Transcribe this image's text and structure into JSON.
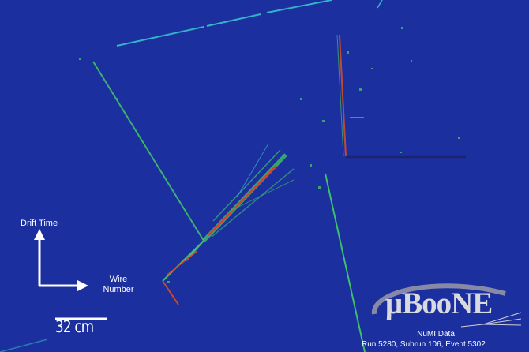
{
  "axes": {
    "vertical_label": "Drift Time",
    "horizontal_label_line1": "Wire",
    "horizontal_label_line2": "Number"
  },
  "scale_bar": {
    "label": "32 cm"
  },
  "logo": {
    "text": "μBooNE"
  },
  "event": {
    "data_title": "NuMI Data",
    "run_info": "Run 5280, Subrun 106, Event 5302"
  },
  "colors": {
    "background": "#1b2f9e",
    "track_green": "#3fbf6a",
    "track_red": "#d9402a",
    "track_cyan": "#33b3c9",
    "label_white": "#ffffff"
  }
}
